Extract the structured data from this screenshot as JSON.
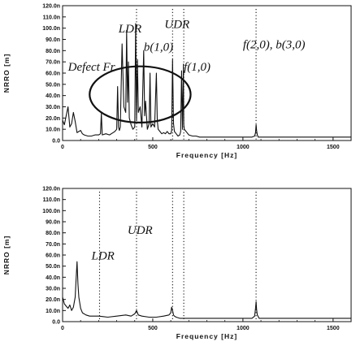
{
  "chart_data": [
    {
      "type": "line",
      "ylabel": "NRRO [m]",
      "xlabel": "Frequency [Hz]",
      "xlim": [
        0,
        1600
      ],
      "ylim": [
        0,
        120
      ],
      "y_unit_suffix": "n",
      "yticks": [
        "0.0",
        "10.0n",
        "20.0n",
        "30.0n",
        "40.0n",
        "50.0n",
        "60.0n",
        "70.0n",
        "80.0n",
        "90.0n",
        "100.0n",
        "110.0n",
        "120.0n"
      ],
      "xticks": [
        "0",
        "500",
        "1000",
        "1500"
      ],
      "grid": false,
      "annotations": [
        {
          "text": "Defect Fr",
          "x": 30,
          "y": 62
        },
        {
          "text": "LDR",
          "x": 310,
          "y": 96
        },
        {
          "text": "UDR",
          "x": 565,
          "y": 100
        },
        {
          "text": "b(1,0)",
          "x": 450,
          "y": 80
        },
        {
          "text": "f(1,0)",
          "x": 672,
          "y": 62
        },
        {
          "text": "f(2,0), b(3,0)",
          "x": 1000,
          "y": 82
        }
      ],
      "highlight_ellipse": {
        "cx": 430,
        "cy": 41,
        "rx": 280,
        "ry": 25
      },
      "guide_lines_x": [
        410,
        610,
        672,
        1073
      ],
      "series": [
        {
          "x": [
            0,
            10,
            20,
            30,
            40,
            50,
            60,
            70,
            80,
            90,
            100,
            110,
            120,
            140,
            160,
            180,
            200,
            210,
            215,
            220,
            240,
            260,
            280,
            290,
            300,
            305,
            310,
            315,
            320,
            330,
            340,
            350,
            355,
            360,
            365,
            370,
            380,
            390,
            400,
            405,
            410,
            415,
            420,
            430,
            440,
            450,
            455,
            460,
            470,
            480,
            485,
            490,
            500,
            510,
            520,
            525,
            530,
            540,
            550,
            560,
            570,
            580,
            590,
            600,
            605,
            610,
            615,
            620,
            630,
            640,
            650,
            655,
            660,
            665,
            670,
            672,
            675,
            680,
            690,
            700,
            720,
            740,
            760,
            800,
            850,
            900,
            950,
            1000,
            1050,
            1065,
            1070,
            1073,
            1076,
            1080,
            1085,
            1095,
            1110,
            1150,
            1200,
            1250,
            1300,
            1350,
            1400,
            1450,
            1500,
            1550,
            1600
          ],
          "y": [
            18,
            14,
            22,
            30,
            12,
            15,
            25,
            17,
            7,
            8,
            9,
            6,
            5,
            4,
            4,
            5,
            5,
            6,
            24,
            5,
            6,
            5,
            7,
            8,
            10,
            48,
            12,
            9,
            12,
            86,
            30,
            25,
            98,
            34,
            70,
            20,
            14,
            10,
            12,
            104,
            18,
            72,
            25,
            30,
            12,
            80,
            22,
            35,
            10,
            15,
            60,
            12,
            15,
            12,
            60,
            18,
            10,
            8,
            6,
            7,
            6,
            8,
            6,
            6,
            9,
            72,
            15,
            8,
            6,
            4,
            5,
            8,
            62,
            10,
            68,
            14,
            10,
            9,
            7,
            5,
            4,
            4,
            3,
            3,
            3,
            3,
            3,
            3,
            3,
            4,
            7,
            14,
            9,
            5,
            3,
            3,
            3,
            3,
            3,
            3,
            3,
            3,
            3,
            3,
            3,
            3,
            3
          ]
        }
      ]
    },
    {
      "type": "line",
      "ylabel": "NRRO [m]",
      "xlabel": "Frequency [Hz]",
      "xlim": [
        0,
        1600
      ],
      "ylim": [
        0,
        120
      ],
      "y_unit_suffix": "n",
      "yticks": [
        "0.0",
        "10.0n",
        "20.0n",
        "30.0n",
        "40.0n",
        "50.0n",
        "60.0n",
        "70.0n",
        "80.0n",
        "90.0n",
        "100.0n",
        "110.0n",
        "120.0n"
      ],
      "xticks": [
        "0",
        "500",
        "1000",
        "1500"
      ],
      "grid": false,
      "annotations": [
        {
          "text": "LDR",
          "x": 160,
          "y": 56
        },
        {
          "text": "UDR",
          "x": 360,
          "y": 79
        }
      ],
      "guide_lines_x": [
        205,
        410,
        610,
        672,
        1073
      ],
      "series": [
        {
          "x": [
            0,
            10,
            20,
            30,
            40,
            50,
            60,
            70,
            75,
            80,
            85,
            90,
            100,
            110,
            130,
            150,
            180,
            200,
            250,
            300,
            350,
            380,
            400,
            410,
            420,
            440,
            480,
            520,
            560,
            590,
            600,
            605,
            610,
            615,
            620,
            630,
            650,
            700,
            750,
            800,
            850,
            900,
            950,
            1000,
            1050,
            1065,
            1070,
            1073,
            1076,
            1080,
            1090,
            1110,
            1150,
            1200,
            1250,
            1300,
            1350,
            1400,
            1450,
            1500,
            1550,
            1600
          ],
          "y": [
            22,
            16,
            14,
            12,
            15,
            10,
            13,
            22,
            38,
            54,
            34,
            22,
            12,
            8,
            6,
            5,
            5,
            5,
            4,
            5,
            6,
            5,
            7,
            10,
            6,
            5,
            4,
            4,
            5,
            6,
            8,
            13,
            10,
            6,
            5,
            4,
            3,
            3,
            3,
            3,
            3,
            3,
            3,
            3,
            3,
            5,
            12,
            18,
            11,
            6,
            3,
            3,
            3,
            3,
            3,
            3,
            3,
            3,
            3,
            3,
            3,
            3
          ]
        }
      ]
    }
  ]
}
